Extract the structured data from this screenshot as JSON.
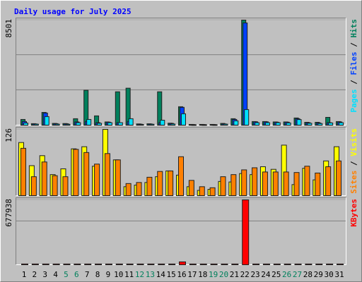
{
  "title": "Daily usage for July 2025",
  "legend_separator": "/",
  "chart_data": [
    {
      "type": "bar",
      "ylim": [
        0,
        8501
      ],
      "yticks": [
        8501
      ],
      "series": [
        {
          "name": "Hits",
          "color": "#00805c",
          "values": [
            460,
            120,
            1030,
            140,
            130,
            520,
            2820,
            750,
            260,
            2700,
            2990,
            100,
            110,
            2700,
            160,
            1490,
            60,
            60,
            60,
            140,
            520,
            8501,
            290,
            290,
            260,
            260,
            580,
            230,
            230,
            630,
            290
          ]
        },
        {
          "name": "Files",
          "color": "#0040ff",
          "values": [
            290,
            100,
            980,
            120,
            110,
            260,
            300,
            200,
            240,
            200,
            300,
            80,
            90,
            200,
            140,
            1440,
            50,
            50,
            50,
            100,
            460,
            8270,
            270,
            270,
            240,
            240,
            520,
            200,
            180,
            200,
            260
          ]
        },
        {
          "name": "Pages",
          "color": "#00e0ff",
          "values": [
            170,
            80,
            690,
            80,
            70,
            200,
            460,
            150,
            200,
            200,
            520,
            60,
            70,
            400,
            90,
            920,
            40,
            40,
            40,
            80,
            350,
            1260,
            200,
            200,
            200,
            180,
            450,
            150,
            130,
            180,
            200
          ]
        }
      ]
    },
    {
      "type": "bar",
      "ylim": [
        0,
        126
      ],
      "yticks": [
        126
      ],
      "series": [
        {
          "name": "Visits",
          "color": "#ffff00",
          "values": [
            101,
            57,
            76,
            40,
            51,
            89,
            93,
            56,
            126,
            68,
            17,
            20,
            25,
            36,
            47,
            39,
            17,
            10,
            12,
            27,
            26,
            42,
            40,
            55,
            50,
            96,
            21,
            52,
            30,
            66,
            93
          ]
        },
        {
          "name": "Sites",
          "color": "#ff8000",
          "values": [
            90,
            36,
            64,
            38,
            36,
            88,
            82,
            60,
            80,
            68,
            23,
            25,
            35,
            46,
            47,
            74,
            29,
            17,
            15,
            36,
            40,
            49,
            53,
            45,
            45,
            45,
            44,
            56,
            43,
            55,
            66
          ]
        }
      ]
    },
    {
      "type": "bar",
      "ylim": [
        0,
        677938
      ],
      "yticks": [
        677938
      ],
      "categories": [
        "1",
        "2",
        "3",
        "4",
        "5",
        "6",
        "7",
        "8",
        "9",
        "10",
        "11",
        "12",
        "13",
        "14",
        "15",
        "16",
        "17",
        "18",
        "19",
        "20",
        "21",
        "22",
        "23",
        "24",
        "25",
        "26",
        "27",
        "28",
        "29",
        "30",
        "31"
      ],
      "category_colors": [
        "#000000",
        "#000000",
        "#000000",
        "#000000",
        "#00805c",
        "#00805c",
        "#000000",
        "#000000",
        "#000000",
        "#000000",
        "#000000",
        "#00805c",
        "#00805c",
        "#000000",
        "#000000",
        "#000000",
        "#000000",
        "#000000",
        "#00805c",
        "#00805c",
        "#000000",
        "#000000",
        "#000000",
        "#000000",
        "#000000",
        "#00805c",
        "#00805c",
        "#000000",
        "#000000",
        "#000000",
        "#000000"
      ],
      "series": [
        {
          "name": "KBytes",
          "color": "#ff0000",
          "values": [
            8000,
            8000,
            8000,
            8000,
            8000,
            8000,
            8000,
            8000,
            8000,
            8000,
            8000,
            8000,
            8000,
            8000,
            8000,
            30000,
            8000,
            8000,
            8000,
            8000,
            8000,
            677938,
            8000,
            8000,
            8000,
            8000,
            8000,
            8000,
            8000,
            8000,
            8000
          ]
        }
      ]
    }
  ]
}
